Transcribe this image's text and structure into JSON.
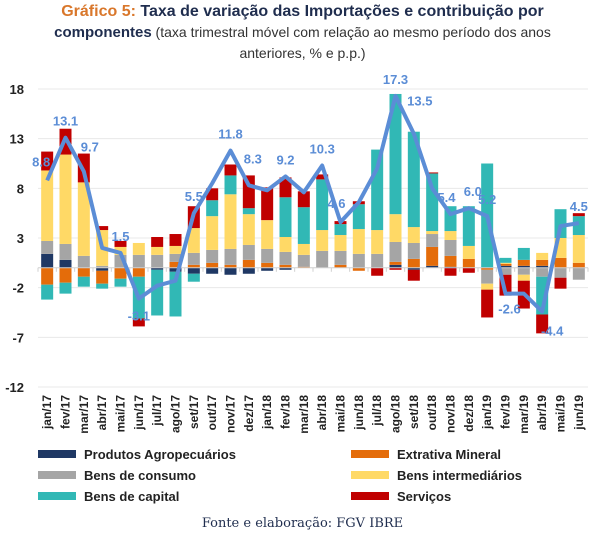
{
  "header": {
    "lead": "Gráfico 5:",
    "title_rest": " Taxa de variação das Importações e contribuição por",
    "title_line2_bold": "componentes",
    "subtitle": " (taxa trimestral móvel com relação ao mesmo período dos anos",
    "subtitle_line3": "anteriores, % e p.p.)"
  },
  "source": "Fonte e elaboração: FGV IBRE",
  "chart_data": {
    "type": "bar",
    "stacked": true,
    "title": "Gráfico 5: Taxa de variação das Importações e contribuição por componentes (taxa trimestral móvel com relação ao mesmo período dos anos anteriores, % e p.p.)",
    "xlabel": "",
    "ylabel": "",
    "ylim": [
      -12,
      18
    ],
    "yticks": [
      18,
      13,
      8,
      3,
      -2,
      -7,
      -12
    ],
    "grid": true,
    "legend_position": "bottom",
    "categories": [
      "jan/17",
      "fev/17",
      "mar/17",
      "abr/17",
      "mai/17",
      "jun/17",
      "jul/17",
      "ago/17",
      "set/17",
      "out/17",
      "nov/17",
      "dez/17",
      "jan/18",
      "fev/18",
      "mar/18",
      "abr/18",
      "mai/18",
      "jun/18",
      "jul/18",
      "ago/18",
      "set/18",
      "out/18",
      "nov/18",
      "dez/18",
      "jan/19",
      "fev/19",
      "mar/19",
      "abr/19",
      "mai/19",
      "jun/19"
    ],
    "series": [
      {
        "name": "Produtos Agropecuários",
        "color": "#1f3864",
        "values": [
          1.4,
          0.8,
          0,
          -0.3,
          0,
          0,
          -0.2,
          -0.4,
          -0.6,
          -0.6,
          -0.7,
          -0.6,
          -0.3,
          -0.2,
          0,
          0,
          0,
          0,
          0,
          0.3,
          -0.2,
          0.2,
          0.1,
          0,
          0,
          0.2,
          0.2,
          0.2,
          0,
          0
        ]
      },
      {
        "name": "Extrativa Mineral",
        "color": "#e46c0a",
        "values": [
          -1.7,
          -1.5,
          -0.9,
          -1.3,
          -1.1,
          -0.9,
          0,
          0.6,
          0.3,
          0.5,
          0.3,
          0.8,
          0.5,
          0.3,
          0.1,
          0,
          0.3,
          -0.3,
          0,
          0.3,
          0.9,
          1.9,
          1.1,
          0.9,
          -0.2,
          0.2,
          0.6,
          0.6,
          1.0,
          0.5
        ]
      },
      {
        "name": "Bens de consumo",
        "color": "#a5a5a5",
        "values": [
          1.3,
          1.6,
          1.2,
          0.2,
          1.3,
          1.3,
          1.3,
          0.8,
          1.2,
          1.3,
          1.6,
          1.5,
          1.4,
          1.3,
          1.2,
          1.7,
          1.4,
          1.4,
          1.4,
          2.0,
          1.6,
          1.3,
          1.6,
          0,
          -1.4,
          -0.7,
          -0.7,
          -0.9,
          -1.0,
          -1.2
        ]
      },
      {
        "name": "Bens intermediários",
        "color": "#ffd966",
        "values": [
          7.1,
          9.0,
          7.4,
          3.6,
          0.8,
          1.2,
          0.8,
          0.8,
          2.5,
          3.4,
          5.5,
          3.1,
          2.9,
          1.5,
          1.1,
          2.1,
          1.6,
          2.5,
          2.4,
          2.8,
          1.6,
          0.3,
          0.9,
          1.3,
          -0.6,
          0.1,
          -0.6,
          0.7,
          2.0,
          2.8
        ]
      },
      {
        "name": "Bens de capital",
        "color": "#31b8b5",
        "values": [
          -1.5,
          -1.1,
          -1.0,
          -0.5,
          -0.8,
          -4.2,
          -4.6,
          -4.5,
          -0.8,
          1.6,
          1.9,
          0.6,
          0,
          4.0,
          3.7,
          5.1,
          1.1,
          2.5,
          8.1,
          12.1,
          9.6,
          5.8,
          2.5,
          4.0,
          10.5,
          0.5,
          1.2,
          -3.8,
          2.9,
          1.9
        ]
      },
      {
        "name": "Serviços",
        "color": "#c00000",
        "values": [
          1.9,
          2.6,
          2.9,
          0.4,
          0.6,
          -0.8,
          1.0,
          1.2,
          2.2,
          1.2,
          1.1,
          3.3,
          3.3,
          2.0,
          1.6,
          0.5,
          0.3,
          0.3,
          -0.8,
          -0.2,
          -1.1,
          0.1,
          -0.8,
          -0.5,
          -2.8,
          -2.1,
          -2.8,
          -1.9,
          -1.1,
          0.3
        ]
      }
    ],
    "line": {
      "name": "Taxa de variação das Importações",
      "color": "#5b8dd6",
      "values": [
        8.8,
        13.1,
        9.7,
        2.0,
        1.5,
        -3.1,
        -1.8,
        -1.3,
        5.5,
        8.5,
        11.8,
        8.3,
        7.8,
        9.2,
        7.6,
        10.3,
        4.6,
        6.6,
        10.0,
        17.3,
        13.5,
        8.0,
        5.4,
        6.0,
        5.2,
        -2.6,
        -2.6,
        -4.4,
        4.2,
        4.5
      ],
      "labels": [
        {
          "index": 0,
          "text": "8.8"
        },
        {
          "index": 1,
          "text": "13.1"
        },
        {
          "index": 2,
          "text": "9.7"
        },
        {
          "index": 4,
          "text": "1.5"
        },
        {
          "index": 5,
          "text": "-3.1"
        },
        {
          "index": 8,
          "text": "5.5"
        },
        {
          "index": 10,
          "text": "11.8"
        },
        {
          "index": 11,
          "text": "8.3"
        },
        {
          "index": 13,
          "text": "9.2"
        },
        {
          "index": 15,
          "text": "10.3"
        },
        {
          "index": 16,
          "text": "4.6"
        },
        {
          "index": 19,
          "text": "17.3"
        },
        {
          "index": 20,
          "text": "13.5"
        },
        {
          "index": 22,
          "text": "5.4"
        },
        {
          "index": 23,
          "text": "6.0"
        },
        {
          "index": 24,
          "text": "5.2"
        },
        {
          "index": 25,
          "text": "-2.6"
        },
        {
          "index": 27,
          "text": "-4.4"
        },
        {
          "index": 29,
          "text": "4.5"
        }
      ]
    }
  }
}
